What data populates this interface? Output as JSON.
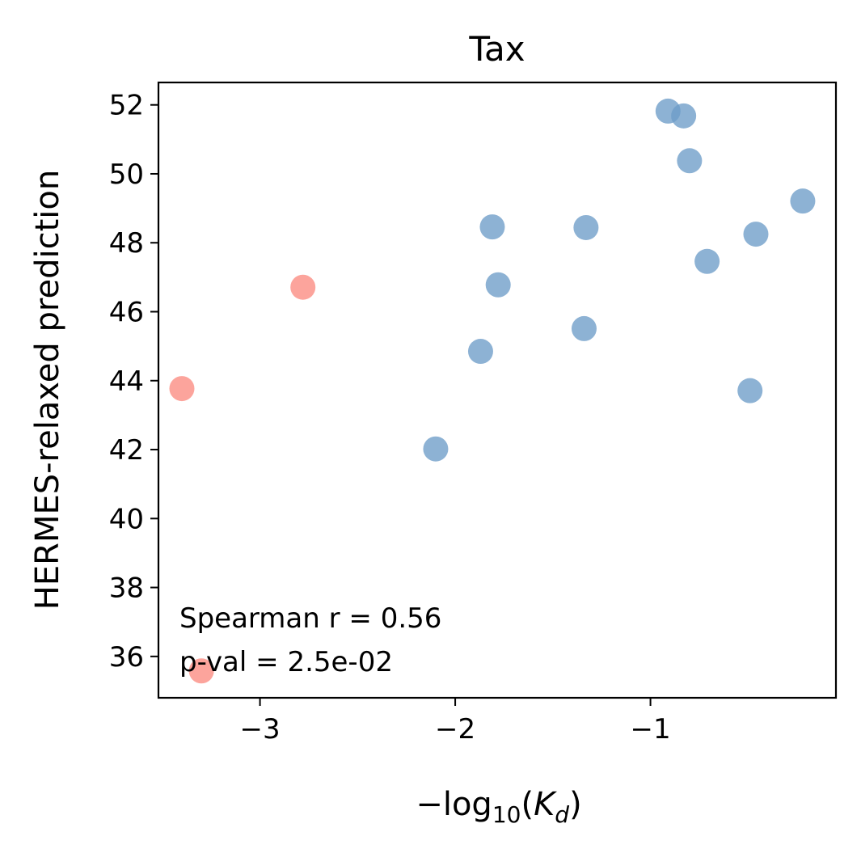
{
  "chart_data": {
    "type": "scatter",
    "title": "Tax",
    "xlabel": "−log10(Kd)",
    "xlabel_parts": {
      "prefix": "−log",
      "sub": "10",
      "open": "(",
      "var": "K",
      "var_sub": "d",
      "close": ")"
    },
    "ylabel": "HERMES-relaxed prediction",
    "xlim": [
      -3.52,
      -0.05
    ],
    "ylim": [
      34.8,
      52.65
    ],
    "xticks": [
      -3,
      -2,
      -1
    ],
    "xtick_labels": [
      "−3",
      "−2",
      "−1"
    ],
    "yticks": [
      36,
      38,
      40,
      42,
      44,
      46,
      48,
      50,
      52
    ],
    "ytick_labels": [
      "36",
      "38",
      "40",
      "42",
      "44",
      "46",
      "48",
      "50",
      "52"
    ],
    "grid": false,
    "colors": {
      "blue": "#6d9cc8",
      "red": "#fb8a80"
    },
    "series": [
      {
        "color": "blue",
        "points": [
          {
            "x": -0.91,
            "y": 51.82
          },
          {
            "x": -0.83,
            "y": 51.68
          },
          {
            "x": -0.8,
            "y": 50.38
          },
          {
            "x": -0.22,
            "y": 49.21
          },
          {
            "x": -1.81,
            "y": 48.46
          },
          {
            "x": -1.33,
            "y": 48.44
          },
          {
            "x": -0.46,
            "y": 48.25
          },
          {
            "x": -0.71,
            "y": 47.46
          },
          {
            "x": -1.78,
            "y": 46.78
          },
          {
            "x": -1.34,
            "y": 45.51
          },
          {
            "x": -1.87,
            "y": 44.85
          },
          {
            "x": -0.49,
            "y": 43.71
          },
          {
            "x": -2.1,
            "y": 42.02
          }
        ]
      },
      {
        "color": "red",
        "points": [
          {
            "x": -2.78,
            "y": 46.71
          },
          {
            "x": -3.4,
            "y": 43.77
          },
          {
            "x": -3.3,
            "y": 35.58
          }
        ]
      }
    ],
    "annotation": [
      "Spearman r = 0.56",
      "p-val = 2.5e-02"
    ]
  }
}
